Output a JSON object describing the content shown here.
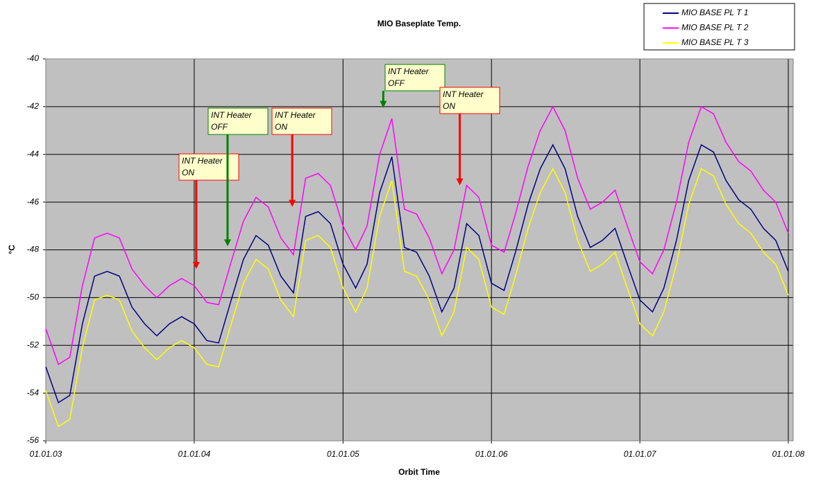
{
  "chart_data": {
    "type": "line",
    "title": "MIO Baseplate Temp.",
    "x_label": "Orbit Time",
    "y_label": "°C",
    "x": [
      "01.01.03",
      "01.02.03",
      "01.03.03",
      "01.04.03",
      "01.05.03",
      "01.06.03",
      "01.07.03",
      "01.08.03",
      "01.09.03",
      "01.10.03",
      "01.11.03",
      "01.12.03",
      "01.01.04",
      "01.02.04",
      "01.03.04",
      "01.04.04",
      "01.05.04",
      "01.06.04",
      "01.07.04",
      "01.08.04",
      "01.09.04",
      "01.10.04",
      "01.11.04",
      "01.12.04",
      "01.01.05",
      "01.02.05",
      "01.03.05",
      "01.04.05",
      "01.05.05",
      "01.06.05",
      "01.07.05",
      "01.08.05",
      "01.09.05",
      "01.10.05",
      "01.11.05",
      "01.12.05",
      "01.01.06",
      "01.02.06",
      "01.03.06",
      "01.04.06",
      "01.05.06",
      "01.06.06",
      "01.07.06",
      "01.08.06",
      "01.09.06",
      "01.10.06",
      "01.11.06",
      "01.12.06",
      "01.01.07",
      "01.02.07",
      "01.03.07",
      "01.04.07",
      "01.05.07",
      "01.06.07",
      "01.07.07",
      "01.08.07",
      "01.09.07",
      "01.10.07",
      "01.11.07",
      "01.12.07",
      "01.01.08"
    ],
    "series": [
      {
        "name": "MIO BASE PL T 1",
        "color": "#000080",
        "values": [
          -52.9,
          -54.4,
          -54.1,
          -51.1,
          -49.1,
          -48.9,
          -49.1,
          -50.4,
          -51.1,
          -51.6,
          -51.1,
          -50.8,
          -51.1,
          -51.8,
          -51.9,
          -50.1,
          -48.4,
          -47.4,
          -47.8,
          -49.1,
          -49.8,
          -46.6,
          -46.4,
          -46.9,
          -48.6,
          -49.6,
          -48.6,
          -45.6,
          -44.1,
          -47.9,
          -48.1,
          -49.1,
          -50.6,
          -49.6,
          -46.9,
          -47.4,
          -49.4,
          -49.7,
          -48.1,
          -46.1,
          -44.6,
          -43.6,
          -44.6,
          -46.6,
          -47.9,
          -47.6,
          -47.1,
          -48.6,
          -50.1,
          -50.6,
          -49.6,
          -47.6,
          -45.1,
          -43.6,
          -43.9,
          -45.1,
          -45.9,
          -46.3,
          -47.1,
          -47.6,
          -48.9
        ]
      },
      {
        "name": "MIO BASE PL T 2",
        "color": "#ff00ff",
        "values": [
          -51.3,
          -52.8,
          -52.5,
          -49.5,
          -47.5,
          -47.3,
          -47.5,
          -48.8,
          -49.5,
          -50,
          -49.5,
          -49.2,
          -49.5,
          -50.2,
          -50.3,
          -48.5,
          -46.8,
          -45.8,
          -46.2,
          -47.5,
          -48.2,
          -45,
          -44.8,
          -45.3,
          -47,
          -48,
          -47,
          -44,
          -42.5,
          -46.3,
          -46.5,
          -47.5,
          -49,
          -48,
          -45.3,
          -45.8,
          -47.8,
          -48.1,
          -46.5,
          -44.5,
          -43,
          -42,
          -43,
          -45,
          -46.3,
          -46,
          -45.5,
          -47,
          -48.5,
          -49,
          -48,
          -46,
          -43.5,
          -42,
          -42.3,
          -43.5,
          -44.3,
          -44.7,
          -45.5,
          -46,
          -47.3
        ]
      },
      {
        "name": "MIO BASE PL T 3",
        "color": "#ffff00",
        "values": [
          -53.9,
          -55.4,
          -55.1,
          -52.1,
          -50.1,
          -49.9,
          -50.1,
          -51.4,
          -52.1,
          -52.6,
          -52.1,
          -51.8,
          -52.1,
          -52.8,
          -52.9,
          -51.1,
          -49.4,
          -48.4,
          -48.8,
          -50.1,
          -50.8,
          -47.6,
          -47.4,
          -47.9,
          -49.6,
          -50.6,
          -49.6,
          -46.6,
          -45.1,
          -48.9,
          -49.1,
          -50.1,
          -51.6,
          -50.6,
          -47.9,
          -48.4,
          -50.4,
          -50.7,
          -49.1,
          -47.1,
          -45.6,
          -44.6,
          -45.6,
          -47.6,
          -48.9,
          -48.6,
          -48.1,
          -49.6,
          -51.1,
          -51.6,
          -50.6,
          -48.6,
          -46.1,
          -44.6,
          -44.9,
          -46.1,
          -46.9,
          -47.3,
          -48.1,
          -48.6,
          -49.9
        ]
      }
    ],
    "xlim": [
      "01.01.03",
      "13.01.08"
    ],
    "xticks": [
      "01.01.03",
      "01.01.04",
      "01.01.05",
      "01.01.06",
      "01.01.07",
      "01.01.08"
    ],
    "ylim": [
      -56,
      -40
    ],
    "yticks": [
      -40,
      -42,
      -44,
      -46,
      -48,
      -50,
      -52,
      -54,
      -56
    ],
    "grid": true,
    "legend": "top-right",
    "annotations": [
      {
        "lines": [
          "INT Heater",
          "ON"
        ],
        "x": "06.01.04",
        "y": -48.8,
        "color": "#ff0000"
      },
      {
        "lines": [
          "INT Heater",
          "OFF"
        ],
        "x": "23.03.04",
        "y": -47.85,
        "color": "#008000"
      },
      {
        "lines": [
          "INT Heater",
          "ON"
        ],
        "x": "29.08.04",
        "y": -46.2,
        "color": "#ff0000"
      },
      {
        "lines": [
          "INT Heater",
          "OFF"
        ],
        "x": "10.04.05",
        "y": -42.05,
        "color": "#008000"
      },
      {
        "lines": [
          "INT Heater",
          "ON"
        ],
        "x": "15.10.05",
        "y": -45.3,
        "color": "#ff0000"
      }
    ]
  }
}
